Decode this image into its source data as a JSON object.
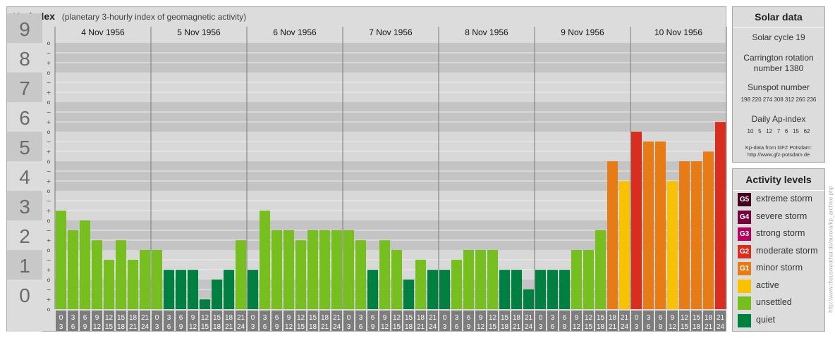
{
  "title": "Kp-index",
  "subtitle": "(planetary 3-hourly index of geomagnetic activity)",
  "chart_data": {
    "type": "bar",
    "ylim": [
      0,
      9
    ],
    "y_ticks": [
      "0",
      "1",
      "2",
      "3",
      "4",
      "5",
      "6",
      "7",
      "8",
      "9"
    ],
    "minor_tick_symbols": [
      "o",
      "+",
      "−"
    ],
    "days": [
      {
        "label": "4 Nov 1956",
        "values": [
          3.33,
          2.67,
          3.0,
          2.33,
          1.67,
          2.33,
          1.67,
          2.0
        ]
      },
      {
        "label": "5 Nov 1956",
        "values": [
          2.0,
          1.33,
          1.33,
          1.33,
          0.33,
          1.0,
          1.33,
          2.33
        ]
      },
      {
        "label": "6 Nov 1956",
        "values": [
          1.33,
          3.33,
          2.67,
          2.67,
          2.33,
          2.67,
          2.67,
          2.67
        ]
      },
      {
        "label": "7 Nov 1956",
        "values": [
          2.67,
          2.33,
          1.33,
          2.33,
          2.0,
          1.0,
          1.67,
          1.33
        ]
      },
      {
        "label": "8 Nov 1956",
        "values": [
          1.33,
          1.67,
          2.0,
          2.0,
          2.0,
          1.33,
          1.33,
          0.67
        ]
      },
      {
        "label": "9 Nov 1956",
        "values": [
          1.33,
          1.33,
          1.33,
          2.0,
          2.0,
          2.67,
          5.0,
          4.33
        ]
      },
      {
        "label": "10 Nov 1956",
        "values": [
          6.0,
          5.67,
          5.67,
          4.33,
          5.0,
          5.0,
          5.33,
          6.33
        ]
      }
    ],
    "hour_labels": [
      [
        "0",
        "3"
      ],
      [
        "3",
        "6"
      ],
      [
        "6",
        "9"
      ],
      [
        "9",
        "12"
      ],
      [
        "12",
        "15"
      ],
      [
        "15",
        "18"
      ],
      [
        "18",
        "21"
      ],
      [
        "21",
        "24"
      ]
    ],
    "colors": {
      "quiet": "#008040",
      "unsettled": "#77be1f",
      "active": "#f8c200",
      "minor": "#e77c16",
      "moderate": "#d92d20",
      "strong": "#b5005d",
      "severe": "#7a003c",
      "extreme": "#44001e",
      "band_dark": "#c4c4c4",
      "band_light": "#d8d8d8"
    }
  },
  "solar": {
    "title": "Solar data",
    "cycle": "Solar cycle 19",
    "carrington": "Carrington rotation number 1380",
    "sunspot_label": "Sunspot number",
    "sunspot_values": "198 220 274 308 312 260 236",
    "ap_label": "Daily Ap-index",
    "ap_values": "10   5   12   7   6   15   62",
    "source_line1": "Kp-data from GFZ Potsdam:",
    "source_line2": "http://www.gfz-potsdam.de"
  },
  "activity": {
    "title": "Activity levels",
    "items": [
      {
        "badge": "G5",
        "label": "extreme storm",
        "color": "#44001e"
      },
      {
        "badge": "G4",
        "label": "severe storm",
        "color": "#7a003c"
      },
      {
        "badge": "G3",
        "label": "strong storm",
        "color": "#b5005d"
      },
      {
        "badge": "G2",
        "label": "moderate storm",
        "color": "#d92d20"
      },
      {
        "badge": "G1",
        "label": "minor storm",
        "color": "#e77c16"
      },
      {
        "badge": "",
        "label": "active",
        "color": "#f8c200"
      },
      {
        "badge": "",
        "label": "unsettled",
        "color": "#77be1f"
      },
      {
        "badge": "",
        "label": "quiet",
        "color": "#008040"
      }
    ]
  },
  "credit": "http://www.theusweather.de/aurora/kp_archive.php"
}
